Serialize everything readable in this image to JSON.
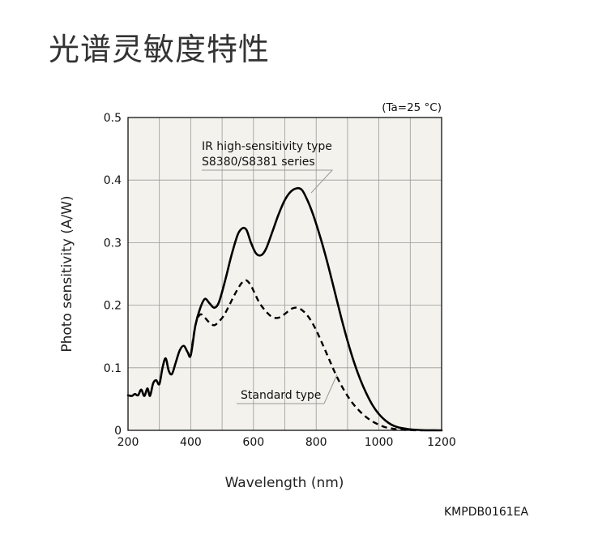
{
  "page": {
    "title": "光谱灵敏度特性",
    "doc_code": "KMPDB0161EA"
  },
  "chart_data": {
    "type": "line",
    "condition_note": "(Ta=25 °C)",
    "xlabel": "Wavelength (nm)",
    "ylabel": "Photo sensitivity (A/W)",
    "xlim": [
      200,
      1200
    ],
    "ylim": [
      0,
      0.5
    ],
    "x_ticks": [
      200,
      400,
      600,
      800,
      1000,
      1200
    ],
    "y_ticks": [
      0,
      0.1,
      0.2,
      0.3,
      0.4,
      0.5
    ],
    "y_tick_labels": [
      "0",
      "0.1",
      "0.2",
      "0.3",
      "0.4",
      "0.5"
    ],
    "grid": true,
    "plot_background": "#f3f2ec",
    "series": [
      {
        "name": "IR high-sensitivity type S8380/S8381 series",
        "label_lines": [
          "IR high-sensitivity type",
          "S8380/S8381 series"
        ],
        "style": "solid",
        "x": [
          200,
          212,
          222,
          232,
          242,
          252,
          262,
          270,
          280,
          290,
          300,
          310,
          320,
          330,
          340,
          352,
          365,
          378,
          390,
          400,
          415,
          430,
          445,
          460,
          475,
          490,
          510,
          530,
          550,
          565,
          578,
          592,
          608,
          625,
          640,
          660,
          680,
          700,
          720,
          740,
          755,
          770,
          785,
          800,
          820,
          840,
          860,
          880,
          900,
          920,
          940,
          960,
          980,
          1000,
          1020,
          1040,
          1060,
          1080,
          1100,
          1120,
          1140,
          1160,
          1180,
          1200
        ],
        "y": [
          0.056,
          0.055,
          0.058,
          0.056,
          0.065,
          0.055,
          0.067,
          0.055,
          0.075,
          0.08,
          0.074,
          0.1,
          0.115,
          0.095,
          0.09,
          0.108,
          0.128,
          0.135,
          0.125,
          0.12,
          0.168,
          0.195,
          0.21,
          0.203,
          0.196,
          0.205,
          0.24,
          0.28,
          0.313,
          0.323,
          0.32,
          0.3,
          0.283,
          0.28,
          0.29,
          0.317,
          0.345,
          0.368,
          0.382,
          0.387,
          0.384,
          0.37,
          0.352,
          0.33,
          0.297,
          0.26,
          0.22,
          0.18,
          0.143,
          0.11,
          0.082,
          0.059,
          0.04,
          0.026,
          0.016,
          0.009,
          0.005,
          0.003,
          0.0015,
          0.0008,
          0.0003,
          0.0001,
          2e-05,
          0.0
        ]
      },
      {
        "name": "Standard type",
        "label_lines": [
          "Standard type"
        ],
        "style": "dashed",
        "x": [
          400,
          415,
          430,
          445,
          460,
          475,
          490,
          505,
          520,
          540,
          560,
          575,
          590,
          605,
          620,
          640,
          660,
          680,
          700,
          720,
          740,
          760,
          780,
          800,
          820,
          840,
          860,
          880,
          900,
          920,
          940,
          960,
          980,
          1000,
          1020,
          1040,
          1060,
          1080,
          1100,
          1120,
          1140
        ],
        "y": [
          0.12,
          0.168,
          0.185,
          0.18,
          0.172,
          0.168,
          0.174,
          0.183,
          0.197,
          0.217,
          0.234,
          0.24,
          0.233,
          0.218,
          0.203,
          0.19,
          0.181,
          0.18,
          0.186,
          0.194,
          0.196,
          0.19,
          0.178,
          0.16,
          0.138,
          0.115,
          0.092,
          0.072,
          0.055,
          0.041,
          0.03,
          0.021,
          0.014,
          0.009,
          0.005,
          0.003,
          0.0015,
          0.0007,
          0.0003,
          0.0001,
          0.0
        ]
      }
    ]
  }
}
